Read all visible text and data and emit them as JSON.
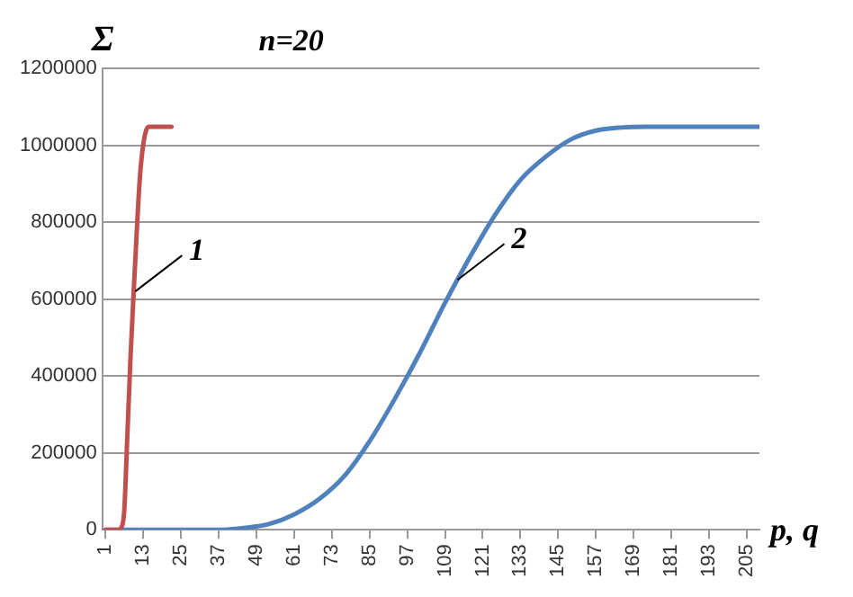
{
  "chart_data": {
    "type": "line",
    "title": "n=20",
    "xlabel": "p, q",
    "ylabel": "Σ",
    "xlim": [
      0,
      209
    ],
    "xticks": [
      1,
      13,
      25,
      37,
      49,
      61,
      73,
      85,
      97,
      109,
      121,
      133,
      145,
      157,
      169,
      181,
      193,
      205
    ],
    "ylim": [
      0,
      1200000
    ],
    "yticks": [
      0,
      200000,
      400000,
      600000,
      800000,
      1000000,
      1200000
    ],
    "grid": "y",
    "legend": false,
    "marker": "none",
    "line_style": "solid",
    "series": [
      {
        "color": "#c0504d",
        "x": [
          1,
          5,
          6,
          7,
          8,
          9,
          10,
          11,
          12,
          13,
          14,
          15,
          22
        ],
        "values": [
          0,
          0,
          5000,
          50000,
          250000,
          450000,
          620000,
          780000,
          920000,
          1000000,
          1040000,
          1048000,
          1048000
        ]
      },
      {
        "color": "#4f81bd",
        "x": [
          1,
          37,
          45,
          53,
          61,
          69,
          77,
          85,
          93,
          101,
          109,
          117,
          125,
          133,
          141,
          149,
          157,
          165,
          173,
          209
        ],
        "values": [
          0,
          0,
          5000,
          15000,
          40000,
          80000,
          140000,
          230000,
          340000,
          460000,
          590000,
          710000,
          820000,
          910000,
          970000,
          1015000,
          1038000,
          1046000,
          1048000,
          1048000
        ]
      }
    ],
    "annotations": [
      {
        "text": "1",
        "x": 10.5,
        "y": 620000
      },
      {
        "text": "2",
        "x": 113,
        "y": 650000
      }
    ]
  }
}
